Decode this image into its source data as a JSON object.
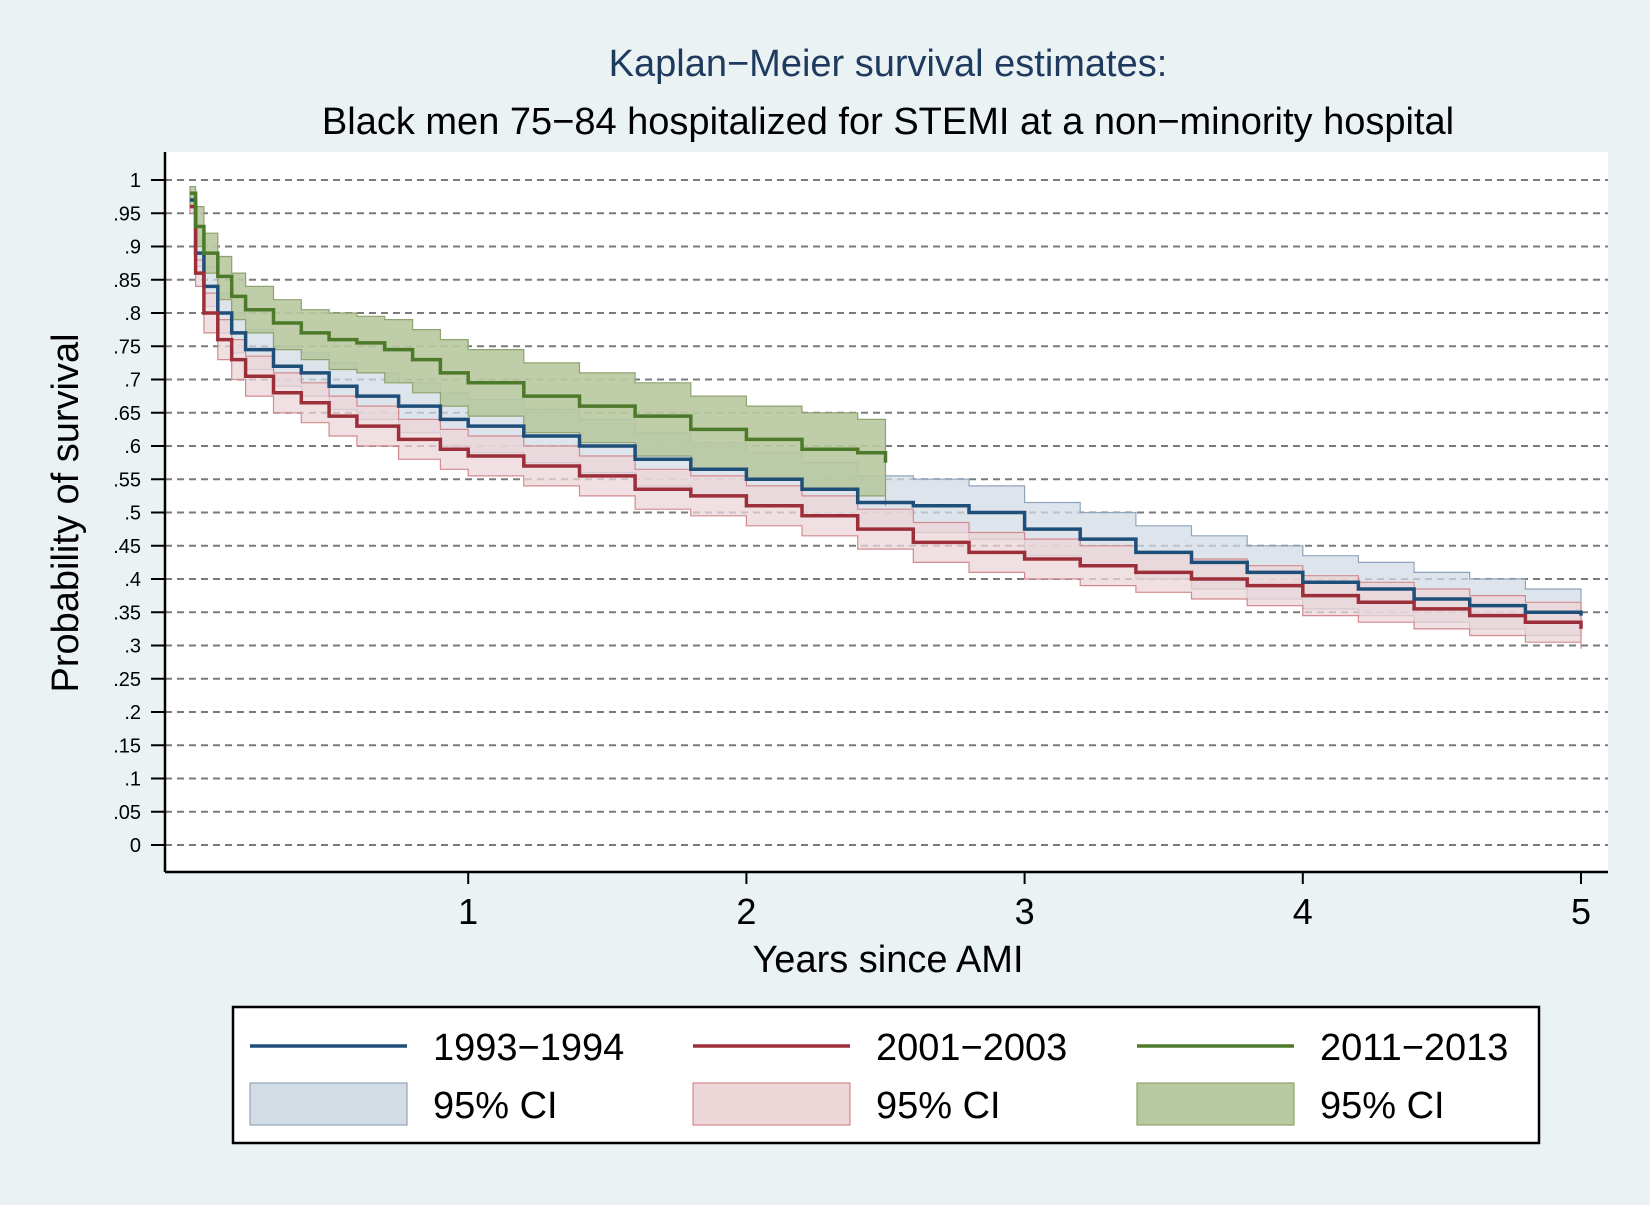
{
  "chart_data": {
    "type": "line",
    "title": "Kaplan−Meier survival estimates:",
    "subtitle": "Black men 75−84 hospitalized for STEMI at a non−minority hospital",
    "xlabel": "Years since AMI",
    "ylabel": "Probability of survival",
    "xlim": [
      0,
      5
    ],
    "ylim": [
      0,
      1
    ],
    "x_ticks": [
      "1",
      "2",
      "3",
      "4",
      "5"
    ],
    "y_ticks": [
      "0",
      ".05",
      ".1",
      ".15",
      ".2",
      ".25",
      ".3",
      ".35",
      ".4",
      ".45",
      ".5",
      ".55",
      ".6",
      ".65",
      ".7",
      ".75",
      ".8",
      ".85",
      ".9",
      ".95",
      "1"
    ],
    "grid": true,
    "legend_position": "bottom",
    "series": [
      {
        "name": "1993−1994",
        "ci_label": "95% CI",
        "color": "#1f4e79",
        "ci_fill": "#d3dbe4",
        "ci_stroke": "#8ea5bd",
        "x": [
          0.0,
          0.02,
          0.05,
          0.1,
          0.15,
          0.2,
          0.3,
          0.4,
          0.5,
          0.6,
          0.75,
          0.9,
          1.0,
          1.2,
          1.4,
          1.6,
          1.8,
          2.0,
          2.2,
          2.4,
          2.6,
          2.8,
          3.0,
          3.2,
          3.4,
          3.6,
          3.8,
          4.0,
          4.2,
          4.4,
          4.6,
          4.8,
          5.0
        ],
        "y": [
          0.97,
          0.89,
          0.84,
          0.8,
          0.77,
          0.745,
          0.72,
          0.71,
          0.69,
          0.675,
          0.66,
          0.64,
          0.63,
          0.615,
          0.6,
          0.58,
          0.565,
          0.55,
          0.535,
          0.515,
          0.51,
          0.5,
          0.475,
          0.46,
          0.44,
          0.425,
          0.41,
          0.395,
          0.385,
          0.37,
          0.36,
          0.35,
          0.345
        ],
        "lower": [
          0.96,
          0.87,
          0.81,
          0.77,
          0.74,
          0.715,
          0.69,
          0.675,
          0.655,
          0.64,
          0.62,
          0.6,
          0.59,
          0.575,
          0.56,
          0.54,
          0.525,
          0.51,
          0.495,
          0.475,
          0.47,
          0.46,
          0.435,
          0.42,
          0.4,
          0.385,
          0.37,
          0.355,
          0.345,
          0.335,
          0.325,
          0.315,
          0.31
        ],
        "upper": [
          0.98,
          0.91,
          0.87,
          0.83,
          0.8,
          0.775,
          0.75,
          0.74,
          0.725,
          0.71,
          0.695,
          0.68,
          0.67,
          0.655,
          0.64,
          0.62,
          0.605,
          0.59,
          0.575,
          0.555,
          0.55,
          0.54,
          0.515,
          0.5,
          0.48,
          0.465,
          0.45,
          0.435,
          0.425,
          0.41,
          0.4,
          0.385,
          0.378
        ]
      },
      {
        "name": "2001−2003",
        "ci_label": "95% CI",
        "color": "#9c2f3a",
        "ci_fill": "#ecd6d7",
        "ci_stroke": "#d28a90",
        "x": [
          0.0,
          0.02,
          0.05,
          0.1,
          0.15,
          0.2,
          0.3,
          0.4,
          0.5,
          0.6,
          0.75,
          0.9,
          1.0,
          1.2,
          1.4,
          1.6,
          1.8,
          2.0,
          2.2,
          2.4,
          2.6,
          2.8,
          3.0,
          3.2,
          3.4,
          3.6,
          3.8,
          4.0,
          4.2,
          4.4,
          4.6,
          4.8,
          5.0
        ],
        "y": [
          0.96,
          0.86,
          0.8,
          0.76,
          0.73,
          0.705,
          0.68,
          0.665,
          0.645,
          0.63,
          0.61,
          0.595,
          0.585,
          0.57,
          0.555,
          0.535,
          0.525,
          0.51,
          0.495,
          0.475,
          0.455,
          0.44,
          0.43,
          0.42,
          0.41,
          0.4,
          0.39,
          0.375,
          0.365,
          0.355,
          0.345,
          0.335,
          0.325
        ],
        "lower": [
          0.95,
          0.84,
          0.77,
          0.73,
          0.7,
          0.675,
          0.65,
          0.635,
          0.615,
          0.6,
          0.58,
          0.565,
          0.555,
          0.54,
          0.525,
          0.505,
          0.495,
          0.48,
          0.465,
          0.445,
          0.425,
          0.41,
          0.4,
          0.39,
          0.38,
          0.37,
          0.36,
          0.345,
          0.335,
          0.325,
          0.315,
          0.305,
          0.295
        ],
        "upper": [
          0.97,
          0.88,
          0.83,
          0.79,
          0.76,
          0.735,
          0.71,
          0.695,
          0.675,
          0.66,
          0.64,
          0.625,
          0.615,
          0.6,
          0.585,
          0.565,
          0.555,
          0.54,
          0.525,
          0.505,
          0.485,
          0.47,
          0.46,
          0.45,
          0.44,
          0.43,
          0.42,
          0.405,
          0.395,
          0.385,
          0.375,
          0.365,
          0.355
        ]
      },
      {
        "name": "2011−2013",
        "ci_label": "95% CI",
        "color": "#4d7a2a",
        "ci_fill": "#b8c8a0",
        "ci_stroke": "#8ea36f",
        "x": [
          0.0,
          0.02,
          0.05,
          0.1,
          0.15,
          0.2,
          0.3,
          0.4,
          0.5,
          0.6,
          0.7,
          0.8,
          0.9,
          1.0,
          1.2,
          1.4,
          1.6,
          1.8,
          2.0,
          2.2,
          2.4,
          2.5
        ],
        "y": [
          0.98,
          0.93,
          0.89,
          0.855,
          0.825,
          0.805,
          0.785,
          0.77,
          0.76,
          0.755,
          0.745,
          0.73,
          0.71,
          0.695,
          0.675,
          0.66,
          0.645,
          0.625,
          0.61,
          0.595,
          0.59,
          0.575
        ],
        "lower": [
          0.96,
          0.9,
          0.86,
          0.82,
          0.79,
          0.77,
          0.745,
          0.73,
          0.715,
          0.71,
          0.695,
          0.68,
          0.66,
          0.645,
          0.62,
          0.605,
          0.585,
          0.565,
          0.55,
          0.535,
          0.525,
          0.51
        ],
        "upper": [
          0.99,
          0.96,
          0.92,
          0.885,
          0.86,
          0.84,
          0.82,
          0.805,
          0.8,
          0.795,
          0.79,
          0.775,
          0.76,
          0.745,
          0.725,
          0.71,
          0.695,
          0.675,
          0.66,
          0.65,
          0.64,
          0.63
        ]
      }
    ]
  }
}
